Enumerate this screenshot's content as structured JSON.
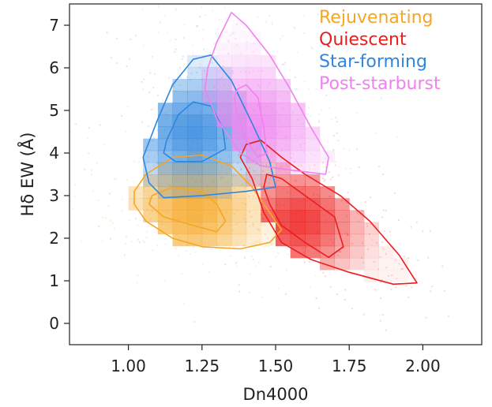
{
  "chart_data": {
    "type": "scatter",
    "title": "",
    "xlabel": "Dn4000",
    "ylabel": "Hδ EW (Å)",
    "xlim": [
      0.8,
      2.2
    ],
    "ylim": [
      -0.5,
      7.5
    ],
    "xticks": [
      "1.00",
      "1.25",
      "1.50",
      "1.75",
      "2.00"
    ],
    "xtick_values": [
      1.0,
      1.25,
      1.5,
      1.75,
      2.0
    ],
    "yticks": [
      "0",
      "1",
      "2",
      "3",
      "4",
      "5",
      "6",
      "7"
    ],
    "ytick_values": [
      0,
      1,
      2,
      3,
      4,
      5,
      6,
      7
    ],
    "grid": false,
    "legend_position": "top-right",
    "series": [
      {
        "name": "Rejuvenating",
        "color": "#f5a623",
        "peak": [
          1.22,
          2.7
        ],
        "outer_contour": [
          [
            1.02,
            3.1
          ],
          [
            1.06,
            3.5
          ],
          [
            1.15,
            3.9
          ],
          [
            1.25,
            3.95
          ],
          [
            1.35,
            3.7
          ],
          [
            1.42,
            3.2
          ],
          [
            1.48,
            2.6
          ],
          [
            1.52,
            2.2
          ],
          [
            1.48,
            1.9
          ],
          [
            1.38,
            1.75
          ],
          [
            1.25,
            1.8
          ],
          [
            1.15,
            2.0
          ],
          [
            1.06,
            2.4
          ],
          [
            1.02,
            2.8
          ]
        ],
        "inner_contour": [
          [
            1.08,
            3.0
          ],
          [
            1.15,
            3.2
          ],
          [
            1.25,
            3.1
          ],
          [
            1.3,
            2.8
          ],
          [
            1.33,
            2.4
          ],
          [
            1.3,
            2.15
          ],
          [
            1.22,
            2.3
          ],
          [
            1.12,
            2.5
          ],
          [
            1.07,
            2.8
          ]
        ]
      },
      {
        "name": "Quiescent",
        "color": "#ee1c1c",
        "peak": [
          1.58,
          2.4
        ],
        "outer_contour": [
          [
            1.4,
            4.2
          ],
          [
            1.45,
            4.3
          ],
          [
            1.52,
            3.9
          ],
          [
            1.6,
            3.5
          ],
          [
            1.72,
            3.0
          ],
          [
            1.82,
            2.4
          ],
          [
            1.92,
            1.6
          ],
          [
            1.98,
            0.95
          ],
          [
            1.9,
            0.92
          ],
          [
            1.75,
            1.2
          ],
          [
            1.62,
            1.5
          ],
          [
            1.52,
            1.9
          ],
          [
            1.46,
            2.6
          ],
          [
            1.42,
            3.4
          ],
          [
            1.38,
            3.9
          ]
        ],
        "inner_contour": [
          [
            1.47,
            3.5
          ],
          [
            1.52,
            3.4
          ],
          [
            1.6,
            3.0
          ],
          [
            1.7,
            2.5
          ],
          [
            1.73,
            1.8
          ],
          [
            1.68,
            1.55
          ],
          [
            1.6,
            1.9
          ],
          [
            1.52,
            2.3
          ],
          [
            1.48,
            2.8
          ],
          [
            1.46,
            3.2
          ]
        ]
      },
      {
        "name": "Star-forming",
        "color": "#2e86de",
        "peak": [
          1.22,
          4.5
        ],
        "outer_contour": [
          [
            1.05,
            3.9
          ],
          [
            1.1,
            4.8
          ],
          [
            1.15,
            5.6
          ],
          [
            1.22,
            6.2
          ],
          [
            1.28,
            6.3
          ],
          [
            1.35,
            5.7
          ],
          [
            1.42,
            4.7
          ],
          [
            1.48,
            3.8
          ],
          [
            1.5,
            3.2
          ],
          [
            1.4,
            3.1
          ],
          [
            1.25,
            3.0
          ],
          [
            1.12,
            2.95
          ],
          [
            1.07,
            3.3
          ]
        ],
        "inner_contour": [
          [
            1.13,
            4.3
          ],
          [
            1.17,
            4.9
          ],
          [
            1.22,
            5.2
          ],
          [
            1.28,
            5.1
          ],
          [
            1.32,
            4.6
          ],
          [
            1.33,
            4.1
          ],
          [
            1.25,
            3.8
          ],
          [
            1.16,
            3.8
          ],
          [
            1.12,
            4.0
          ]
        ]
      },
      {
        "name": "Post-starburst",
        "color": "#ee82ee",
        "peak": [
          1.43,
          4.7
        ],
        "outer_contour": [
          [
            1.27,
            6.0
          ],
          [
            1.3,
            6.6
          ],
          [
            1.35,
            7.3
          ],
          [
            1.4,
            7.0
          ],
          [
            1.48,
            6.3
          ],
          [
            1.55,
            5.5
          ],
          [
            1.62,
            4.6
          ],
          [
            1.68,
            3.9
          ],
          [
            1.67,
            3.5
          ],
          [
            1.55,
            3.6
          ],
          [
            1.45,
            3.7
          ],
          [
            1.38,
            4.0
          ],
          [
            1.3,
            4.8
          ],
          [
            1.26,
            5.5
          ]
        ],
        "inner_contour": [
          [
            1.37,
            5.5
          ],
          [
            1.4,
            5.6
          ],
          [
            1.44,
            5.3
          ],
          [
            1.46,
            4.6
          ],
          [
            1.47,
            4.0
          ],
          [
            1.44,
            3.9
          ],
          [
            1.4,
            4.3
          ],
          [
            1.37,
            4.9
          ],
          [
            1.36,
            5.3
          ]
        ]
      }
    ]
  }
}
